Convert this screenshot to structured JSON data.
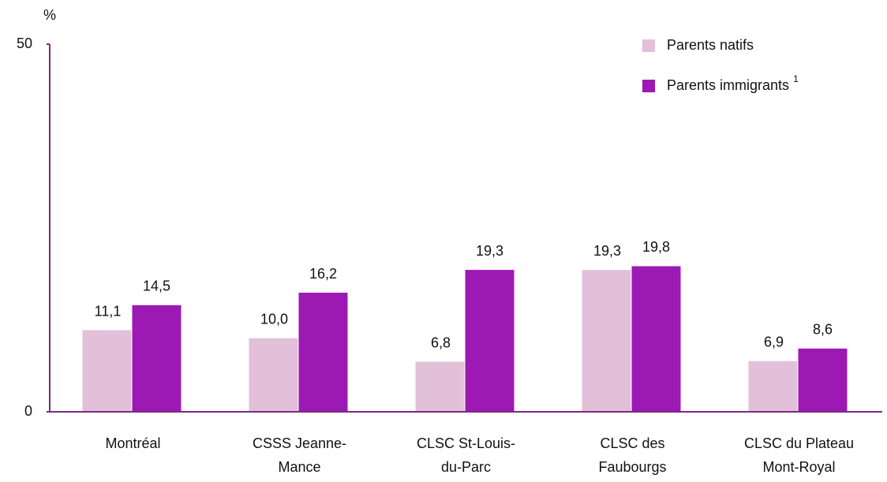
{
  "chart_data": {
    "type": "bar",
    "y_unit_label": "%",
    "categories": [
      "Montréal",
      "CSSS Jeanne-\nMance",
      "CLSC St-Louis-\ndu-Parc",
      "CLSC des\nFaubourgs",
      "CLSC du Plateau\nMont-Royal"
    ],
    "series": [
      {
        "name": "Parents natifs",
        "color": "#e2c0da",
        "values": [
          11.1,
          10.0,
          6.8,
          19.3,
          6.9
        ],
        "value_labels": [
          "11,1",
          "10,0",
          "6,8",
          "19,3",
          "6,9"
        ]
      },
      {
        "name": "Parents immigrants",
        "color": "#9c19b4",
        "values": [
          14.5,
          16.2,
          19.3,
          19.8,
          8.6
        ],
        "value_labels": [
          "14,5",
          "16,2",
          "19,3",
          "19,8",
          "8,6"
        ]
      }
    ],
    "legend_footnote_marker": "1",
    "legend_position": "upper right",
    "axis_color": "#7b2a7f",
    "ylim": [
      0,
      50
    ],
    "yticks": [
      0,
      50
    ],
    "grid": false
  }
}
